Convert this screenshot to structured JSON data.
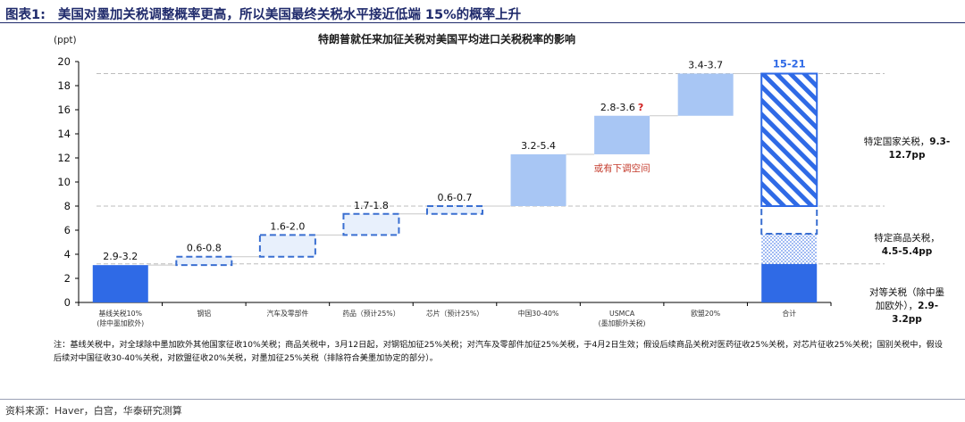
{
  "figure": {
    "number": "图表1:",
    "title": "美国对墨加关税调整概率更高，所以美国最终关税水平接近低端 15%的概率上升"
  },
  "chart_data": {
    "type": "waterfall",
    "title": "特朗普就任来加征关税对美国平均进口关税税率的影响",
    "ylabel": "(ppt)",
    "ylim": [
      0,
      20
    ],
    "yticks": [
      0,
      2,
      4,
      6,
      8,
      10,
      12,
      14,
      16,
      18,
      20
    ],
    "grid": false,
    "categories": [
      "基线关税中",
      "钢铝",
      "汽车及零部件",
      "药品（预计25%）",
      "芯片（预计25%）",
      "中国30-40%",
      "USMCA",
      "欧盟20%",
      "合计"
    ],
    "category_sub": [
      "基线关税10%\n(除中墨加欧外)",
      "钢铝",
      "汽车及零部件",
      "药品（预计25%）",
      "芯片（预计25%）",
      "中国30-40%",
      "USMCA\n(墨加额外关税)",
      "欧盟20%",
      "合计"
    ],
    "steps": [
      {
        "label": "2.9-3.2",
        "start": 0,
        "end": 3.1,
        "style": "solid-dark"
      },
      {
        "label": "0.6-0.8",
        "start": 3.1,
        "end": 3.8,
        "style": "dashed"
      },
      {
        "label": "1.6-2.0",
        "start": 3.8,
        "end": 5.6,
        "style": "dashed"
      },
      {
        "label": "1.7-1.8",
        "start": 5.6,
        "end": 7.35,
        "style": "dashed"
      },
      {
        "label": "0.6-0.7",
        "start": 7.35,
        "end": 8.0,
        "style": "dashed"
      },
      {
        "label": "3.2-5.4",
        "start": 8.0,
        "end": 12.3,
        "style": "solid-light"
      },
      {
        "label": "2.8-3.6",
        "label_mark": "?",
        "start": 12.3,
        "end": 15.5,
        "style": "solid-light"
      },
      {
        "label": "3.4-3.7",
        "start": 15.5,
        "end": 19.0,
        "style": "solid-light"
      }
    ],
    "total": {
      "label": "15-21",
      "segments": [
        {
          "name": "对等关税",
          "start": 0,
          "end": 3.2,
          "style": "solid-dark"
        },
        {
          "name": "特定商品关税（点）",
          "start": 3.2,
          "end": 5.7,
          "style": "dotted"
        },
        {
          "name": "特定商品关税（空）",
          "start": 5.7,
          "end": 8.0,
          "style": "dashed"
        },
        {
          "name": "特定国家关税",
          "start": 8.0,
          "end": 19.0,
          "style": "hatched"
        }
      ]
    },
    "annotations": {
      "usmca_note": "或有下调空间",
      "right_country": [
        "特定国家关税，9.3-",
        "12.7pp"
      ],
      "right_goods": [
        "特定商品关税，",
        "4.5-5.4pp"
      ],
      "right_reciprocal": [
        "对等关税（除中墨",
        "加欧外），2.9-",
        "3.2pp"
      ]
    },
    "reference_lines": [
      3.2,
      8.0,
      19.0
    ],
    "colors": {
      "dark": "#2f6ae6",
      "light": "#a8c6f4",
      "dashed_fill": "#e8f0fc",
      "dashed_stroke": "#3a6fd1",
      "label_total": "#2f6ae6",
      "question": "#d02020",
      "usmca_note": "#c43a2b"
    }
  },
  "note": "注：基线关税中，对全球除中墨加欧外其他国家征收10%关税；商品关税中，3月12日起，对钢铝加征25%关税；对汽车及零部件加征25%关税，于4月2日生效；假设后续商品关税对医药征收25%关税，对芯片征收25%关税；国别关税中，假设后续对中国征收30-40%关税，对欧盟征收20%关税，对墨加征25%关税（排除符合美墨加协定的部分）。",
  "source": "资料来源：Haver，白宫，华泰研究测算"
}
